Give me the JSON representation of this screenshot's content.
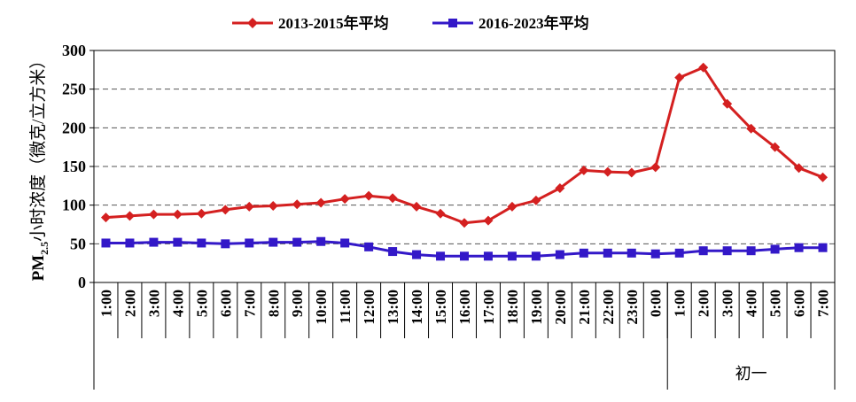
{
  "chart_data": {
    "type": "line",
    "title": "",
    "xlabel": "",
    "ylabel_main": "PM",
    "ylabel_sub": "2.5",
    "ylabel_rest": "小时浓度（微克/立方米）",
    "ylim": [
      0,
      300
    ],
    "yticks": [
      "0",
      "50",
      "100",
      "150",
      "200",
      "250",
      "300"
    ],
    "grid": "horizontal-dashed",
    "legend_position": "top-center",
    "categories": [
      "1:00",
      "2:00",
      "3:00",
      "4:00",
      "5:00",
      "6:00",
      "7:00",
      "8:00",
      "9:00",
      "10:00",
      "11:00",
      "12:00",
      "13:00",
      "14:00",
      "15:00",
      "16:00",
      "17:00",
      "18:00",
      "19:00",
      "20:00",
      "21:00",
      "22:00",
      "23:00",
      "0:00",
      "1:00",
      "2:00",
      "3:00",
      "4:00",
      "5:00",
      "6:00",
      "7:00"
    ],
    "group_label": "初一",
    "series": [
      {
        "name": "2013-2015年平均",
        "color": "#d42020",
        "marker": "diamond",
        "values": [
          84,
          86,
          88,
          88,
          89,
          94,
          98,
          99,
          101,
          103,
          108,
          112,
          109,
          98,
          89,
          77,
          80,
          98,
          106,
          122,
          145,
          143,
          142,
          149,
          265,
          278,
          231,
          199,
          175,
          148,
          136
        ]
      },
      {
        "name": "2016-2023年平均",
        "color": "#3318c8",
        "marker": "square",
        "values": [
          51,
          51,
          52,
          52,
          51,
          50,
          51,
          52,
          52,
          53,
          51,
          46,
          40,
          36,
          34,
          34,
          34,
          34,
          34,
          36,
          38,
          38,
          38,
          37,
          38,
          41,
          41,
          41,
          43,
          45,
          45
        ]
      }
    ]
  }
}
